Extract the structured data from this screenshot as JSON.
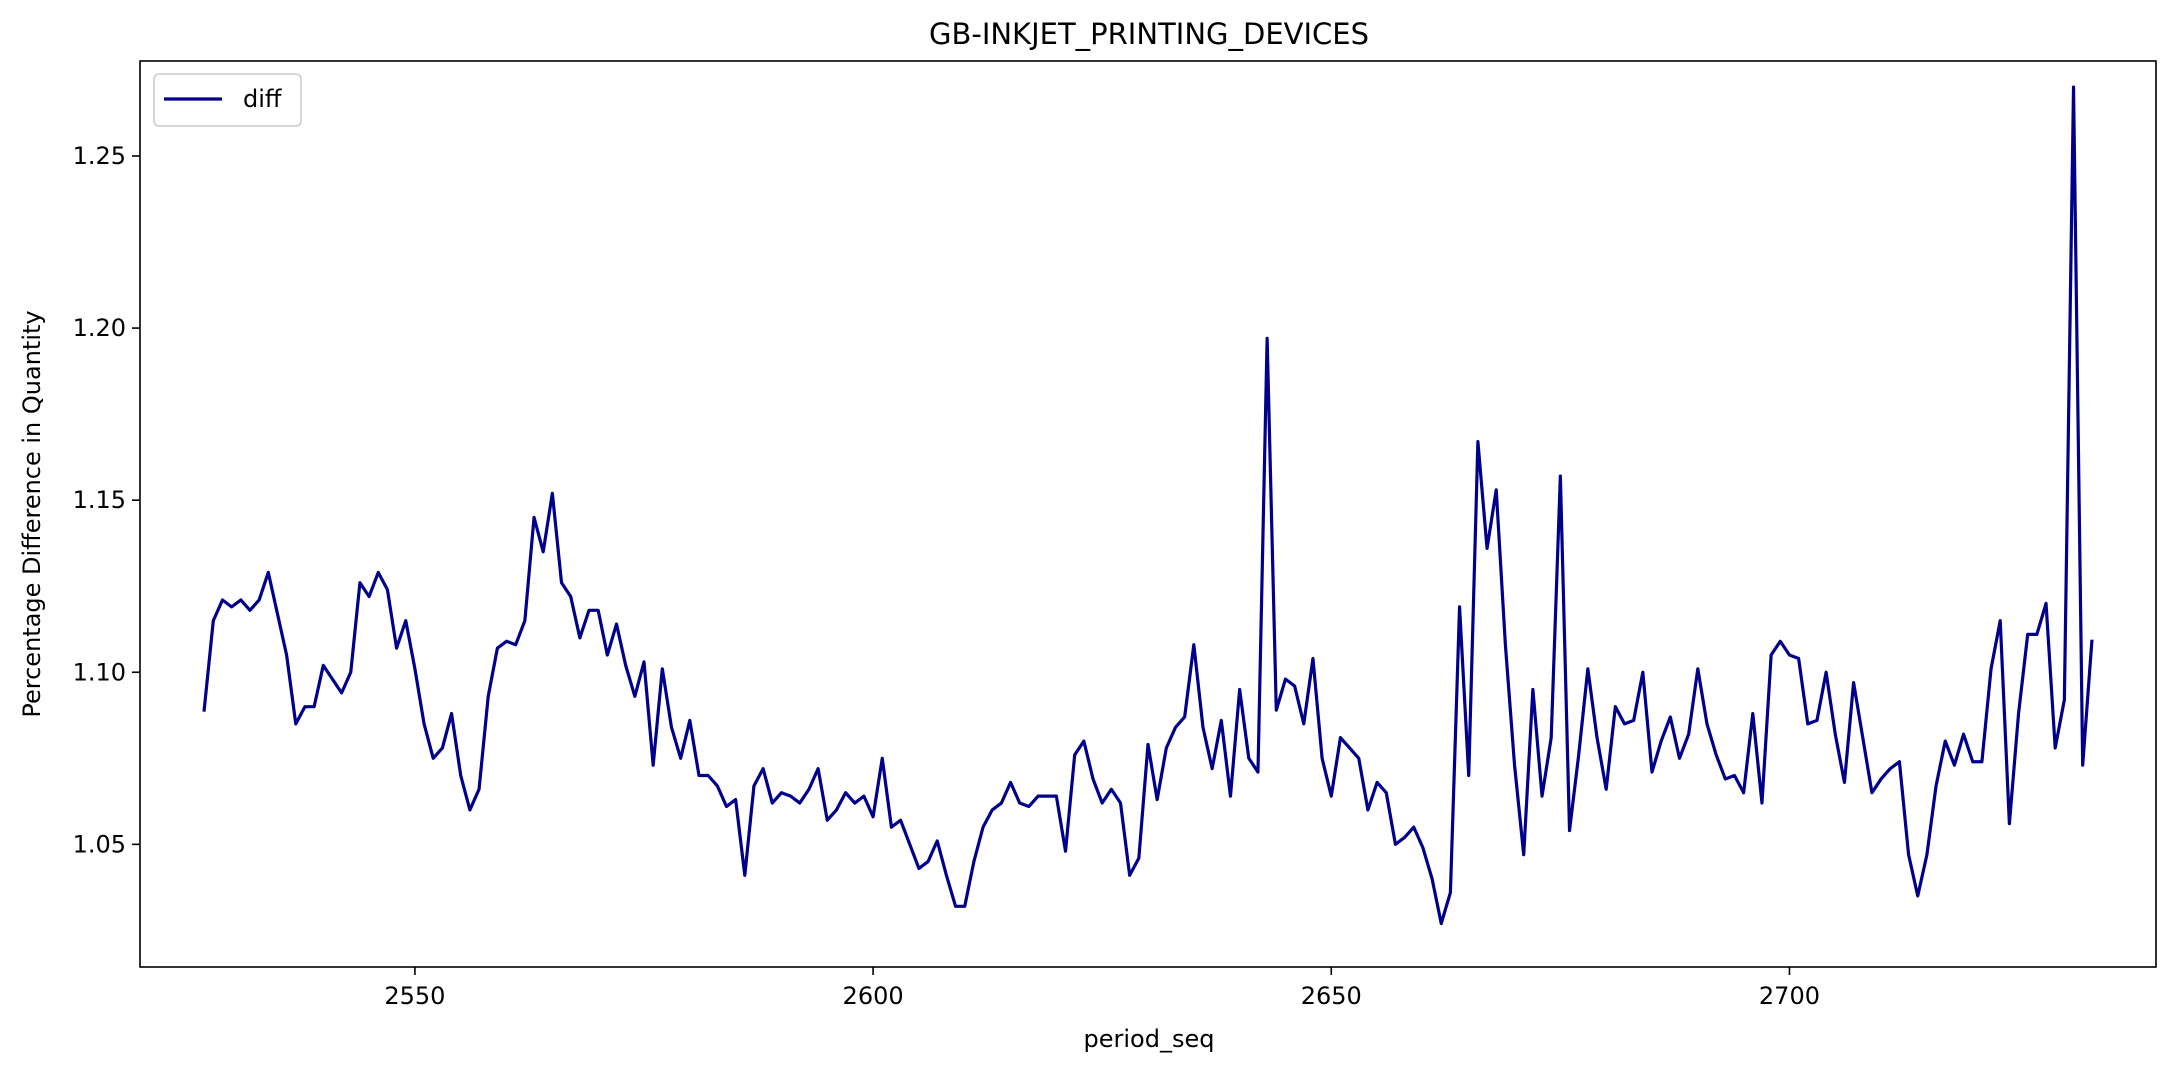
{
  "chart_data": {
    "type": "line",
    "title": "GB-INKJET_PRINTING_DEVICES",
    "xlabel": "period_seq",
    "ylabel": "Percentage Difference in Quantity",
    "xlim": [
      2520,
      2740
    ],
    "ylim": [
      1.01436,
      1.2776
    ],
    "x_ticks": [
      2550,
      2600,
      2650,
      2700
    ],
    "y_ticks": [
      1.05,
      1.1,
      1.15,
      1.2,
      1.25
    ],
    "x_tick_labels": [
      "2550",
      "2600",
      "2650",
      "2700"
    ],
    "y_tick_labels": [
      "1.05",
      "1.10",
      "1.15",
      "1.20",
      "1.25"
    ],
    "grid": false,
    "legend": {
      "position": "upper-left",
      "entries": [
        "diff"
      ]
    },
    "colors": {
      "diff": "#00008b"
    },
    "series": [
      {
        "name": "diff",
        "x": [
          2527,
          2528,
          2529,
          2530,
          2531,
          2532,
          2533,
          2534,
          2535,
          2536,
          2537,
          2538,
          2539,
          2540,
          2541,
          2542,
          2543,
          2544,
          2545,
          2546,
          2547,
          2548,
          2549,
          2550,
          2551,
          2552,
          2553,
          2554,
          2555,
          2556,
          2557,
          2558,
          2559,
          2560,
          2561,
          2562,
          2563,
          2564,
          2565,
          2566,
          2567,
          2568,
          2569,
          2570,
          2571,
          2572,
          2573,
          2574,
          2575,
          2576,
          2577,
          2578,
          2579,
          2580,
          2581,
          2582,
          2583,
          2584,
          2585,
          2586,
          2587,
          2588,
          2589,
          2590,
          2591,
          2592,
          2593,
          2594,
          2595,
          2596,
          2597,
          2598,
          2599,
          2600,
          2601,
          2602,
          2603,
          2604,
          2605,
          2606,
          2607,
          2608,
          2609,
          2610,
          2611,
          2612,
          2613,
          2614,
          2615,
          2616,
          2617,
          2618,
          2619,
          2620,
          2621,
          2622,
          2623,
          2624,
          2625,
          2626,
          2627,
          2628,
          2629,
          2630,
          2631,
          2632,
          2633,
          2634,
          2635,
          2636,
          2637,
          2638,
          2639,
          2640,
          2641,
          2642,
          2643,
          2644,
          2645,
          2646,
          2647,
          2648,
          2649,
          2650,
          2651,
          2652,
          2653,
          2654,
          2655,
          2656,
          2657,
          2658,
          2659,
          2660,
          2661,
          2662,
          2663,
          2664,
          2665,
          2666,
          2667,
          2668,
          2669,
          2670,
          2671,
          2672,
          2673,
          2674,
          2675,
          2676,
          2677,
          2678,
          2679,
          2680,
          2681,
          2682,
          2683,
          2684,
          2685,
          2686,
          2687,
          2688,
          2689,
          2690,
          2691,
          2692,
          2693,
          2694,
          2695,
          2696,
          2697,
          2698,
          2699,
          2700,
          2701,
          2702,
          2703,
          2704,
          2705,
          2706,
          2707,
          2708,
          2709,
          2710,
          2711,
          2712,
          2713,
          2714,
          2715,
          2716,
          2717,
          2718,
          2719,
          2720,
          2721,
          2722,
          2723,
          2724,
          2725,
          2726,
          2727,
          2728,
          2729,
          2730,
          2731,
          2732,
          2733
        ],
        "y": [
          1.089,
          1.115,
          1.121,
          1.119,
          1.121,
          1.118,
          1.121,
          1.129,
          1.117,
          1.105,
          1.085,
          1.09,
          1.09,
          1.102,
          1.098,
          1.094,
          1.1,
          1.126,
          1.122,
          1.129,
          1.124,
          1.107,
          1.115,
          1.101,
          1.085,
          1.075,
          1.078,
          1.088,
          1.07,
          1.06,
          1.066,
          1.093,
          1.107,
          1.109,
          1.108,
          1.115,
          1.145,
          1.135,
          1.152,
          1.126,
          1.122,
          1.11,
          1.118,
          1.118,
          1.105,
          1.114,
          1.102,
          1.093,
          1.103,
          1.073,
          1.101,
          1.084,
          1.075,
          1.086,
          1.07,
          1.07,
          1.067,
          1.061,
          1.063,
          1.041,
          1.067,
          1.072,
          1.062,
          1.065,
          1.064,
          1.062,
          1.066,
          1.072,
          1.057,
          1.06,
          1.065,
          1.062,
          1.064,
          1.058,
          1.075,
          1.055,
          1.057,
          1.05,
          1.043,
          1.045,
          1.051,
          1.041,
          1.032,
          1.032,
          1.045,
          1.055,
          1.06,
          1.062,
          1.068,
          1.062,
          1.061,
          1.064,
          1.064,
          1.064,
          1.048,
          1.076,
          1.08,
          1.069,
          1.062,
          1.066,
          1.062,
          1.041,
          1.046,
          1.079,
          1.063,
          1.078,
          1.084,
          1.087,
          1.108,
          1.084,
          1.072,
          1.086,
          1.064,
          1.095,
          1.075,
          1.071,
          1.197,
          1.089,
          1.098,
          1.096,
          1.085,
          1.104,
          1.075,
          1.064,
          1.081,
          1.078,
          1.075,
          1.06,
          1.068,
          1.065,
          1.05,
          1.052,
          1.055,
          1.049,
          1.04,
          1.027,
          1.036,
          1.119,
          1.07,
          1.167,
          1.136,
          1.153,
          1.108,
          1.073,
          1.047,
          1.095,
          1.064,
          1.081,
          1.157,
          1.054,
          1.076,
          1.101,
          1.081,
          1.066,
          1.09,
          1.085,
          1.086,
          1.1,
          1.071,
          1.08,
          1.087,
          1.075,
          1.082,
          1.101,
          1.085,
          1.076,
          1.069,
          1.07,
          1.065,
          1.088,
          1.062,
          1.105,
          1.109,
          1.105,
          1.104,
          1.085,
          1.086,
          1.1,
          1.082,
          1.068,
          1.097,
          1.081,
          1.065,
          1.069,
          1.072,
          1.074,
          1.047,
          1.035,
          1.047,
          1.067,
          1.08,
          1.073,
          1.082,
          1.074,
          1.074,
          1.101,
          1.115,
          1.056,
          1.088,
          1.111,
          1.111,
          1.12,
          1.078,
          1.092,
          1.27,
          1.073,
          1.109
        ]
      }
    ]
  }
}
